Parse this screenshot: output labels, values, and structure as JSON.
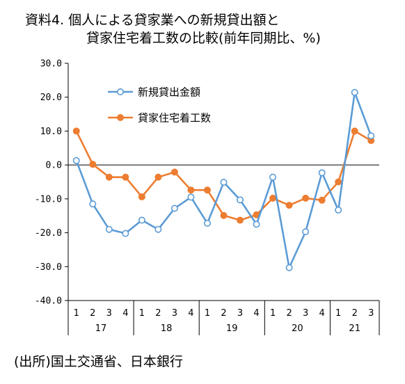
{
  "title": {
    "line1": "資料4.  個人による貸家業への新規貸出額と",
    "line2": "貸家住宅着工数の比較(前年同期比、%)"
  },
  "source": "(出所)国土交通省、日本銀行",
  "colors": {
    "series1": "#5b9bd5",
    "series2": "#ed7d31"
  },
  "chart_data": {
    "type": "line",
    "title": "資料4. 個人による貸家業への新規貸出額と 貸家住宅着工数の比較(前年同期比、%)",
    "ylim": [
      -40,
      30
    ],
    "yticks": [
      "30.0",
      "20.0",
      "10.0",
      "0.0",
      "-10.0",
      "-20.0",
      "-30.0",
      "-40.0"
    ],
    "ytick_values": [
      30,
      20,
      10,
      0,
      -10,
      -20,
      -30,
      -40
    ],
    "x": [
      "1",
      "2",
      "3",
      "4",
      "1",
      "2",
      "3",
      "4",
      "1",
      "2",
      "3",
      "4",
      "1",
      "2",
      "3",
      "4",
      "1",
      "2",
      "3"
    ],
    "years": [
      {
        "label": "17",
        "quarters": 4
      },
      {
        "label": "18",
        "quarters": 4
      },
      {
        "label": "19",
        "quarters": 4
      },
      {
        "label": "20",
        "quarters": 4
      },
      {
        "label": "21",
        "quarters": 3
      }
    ],
    "grid": false,
    "legend_position": "top-left",
    "series": [
      {
        "name": "新規貸出金額",
        "marker": "hollow-circle",
        "values": [
          1.3,
          -11.5,
          -19.0,
          -20.2,
          -16.3,
          -19.0,
          -12.8,
          -9.5,
          -17.2,
          -5.1,
          -10.3,
          -17.5,
          -3.6,
          -30.3,
          -19.7,
          -2.3,
          -13.3,
          21.4,
          8.6
        ]
      },
      {
        "name": "貸家住宅着工数",
        "marker": "filled-circle",
        "values": [
          10.0,
          0.2,
          -3.6,
          -3.6,
          -9.4,
          -3.6,
          -2.1,
          -7.4,
          -7.4,
          -14.9,
          -16.3,
          -14.7,
          -9.8,
          -11.9,
          -9.8,
          -10.4,
          -5.0,
          10.0,
          7.2
        ]
      }
    ]
  }
}
